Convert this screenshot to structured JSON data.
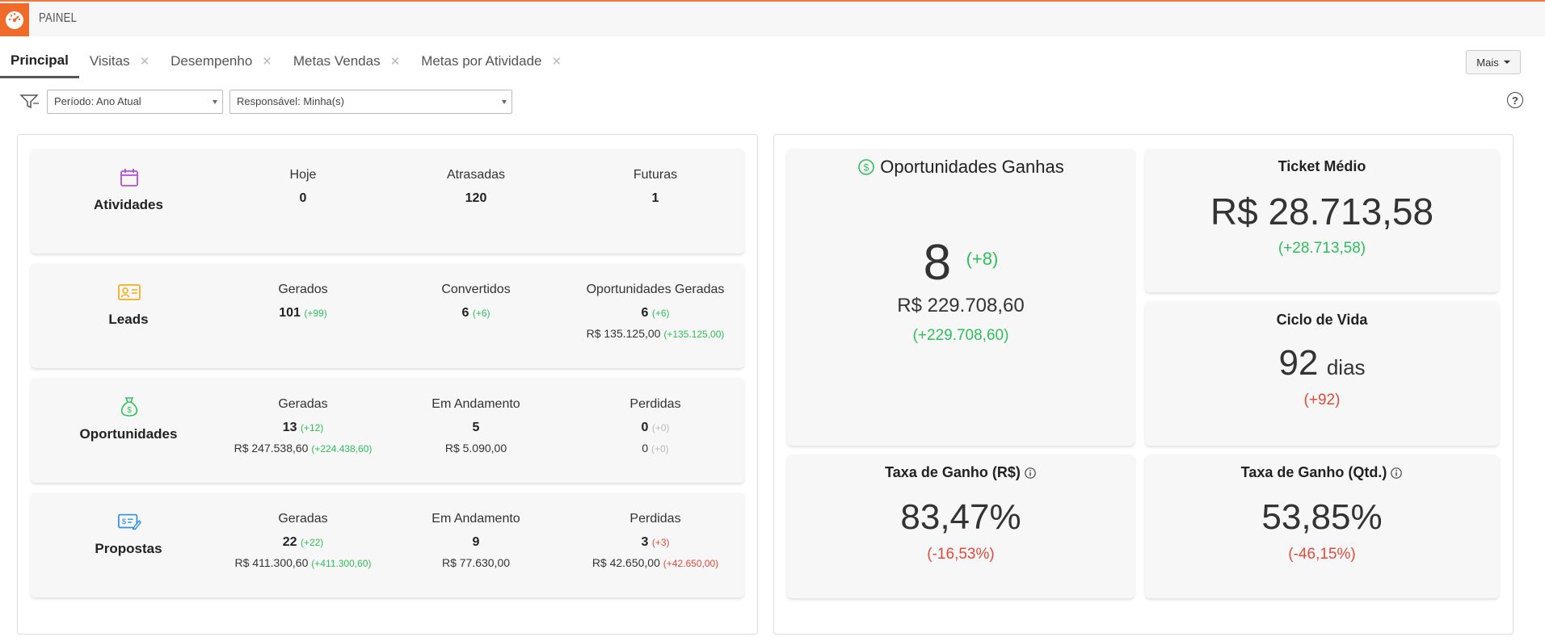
{
  "app": {
    "title": "PAINEL"
  },
  "tabs": [
    {
      "label": "Principal",
      "active": true
    },
    {
      "label": "Visitas"
    },
    {
      "label": "Desempenho"
    },
    {
      "label": "Metas Vendas"
    },
    {
      "label": "Metas por Atividade"
    }
  ],
  "more_label": "Mais",
  "filters": {
    "periodo": "Período: Ano Atual",
    "responsavel": "Responsável: Minha(s)"
  },
  "colors": {
    "accent": "#f06a2a",
    "green": "#2fbf5b",
    "red": "#e04b3b"
  },
  "rows": {
    "atividades": {
      "name": "Atividades",
      "icon": "calendar-icon",
      "cols": [
        {
          "label": "Hoje",
          "value": "0"
        },
        {
          "label": "Atrasadas",
          "value": "120"
        },
        {
          "label": "Futuras",
          "value": "1"
        }
      ]
    },
    "leads": {
      "name": "Leads",
      "icon": "contact-card-icon",
      "cols": [
        {
          "label": "Gerados",
          "value": "101",
          "delta": "(+99)"
        },
        {
          "label": "Convertidos",
          "value": "6",
          "delta": "(+6)"
        },
        {
          "label": "Oportunidades Geradas",
          "value": "6",
          "delta": "(+6)",
          "money": "R$ 135.125,00",
          "money_delta": "(+135.125,00)"
        }
      ]
    },
    "oportunidades": {
      "name": "Oportunidades",
      "icon": "money-bag-icon",
      "cols": [
        {
          "label": "Geradas",
          "value": "13",
          "delta": "(+12)",
          "money": "R$ 247.538,60",
          "money_delta": "(+224.438,60)"
        },
        {
          "label": "Em Andamento",
          "value": "5",
          "money": "R$ 5.090,00"
        },
        {
          "label": "Perdidas",
          "value": "0",
          "delta": "(+0)",
          "money": "0",
          "money_delta": "(+0)"
        }
      ]
    },
    "propostas": {
      "name": "Propostas",
      "icon": "proposal-icon",
      "cols": [
        {
          "label": "Geradas",
          "value": "22",
          "delta": "(+22)",
          "money": "R$ 411.300,60",
          "money_delta": "(+411.300,60)"
        },
        {
          "label": "Em Andamento",
          "value": "9",
          "money": "R$ 77.630,00"
        },
        {
          "label": "Perdidas",
          "value": "3",
          "delta": "(+3)",
          "money": "R$ 42.650,00",
          "money_delta": "(+42.650,00)"
        }
      ]
    }
  },
  "kpis": {
    "ganhas": {
      "title": "Oportunidades Ganhas",
      "count": "8",
      "count_delta": "(+8)",
      "value": "R$ 229.708,60",
      "value_delta": "(+229.708,60)"
    },
    "ticket": {
      "title": "Ticket Médio",
      "value": "R$ 28.713,58",
      "delta": "(+28.713,58)"
    },
    "ciclo": {
      "title": "Ciclo de Vida",
      "value": "92",
      "unit": "dias",
      "delta": "(+92)"
    },
    "taxa_rs": {
      "title": "Taxa de Ganho (R$)",
      "value": "83,47%",
      "delta": "(-16,53%)"
    },
    "taxa_qtd": {
      "title": "Taxa de Ganho (Qtd.)",
      "value": "53,85%",
      "delta": "(-46,15%)"
    }
  }
}
